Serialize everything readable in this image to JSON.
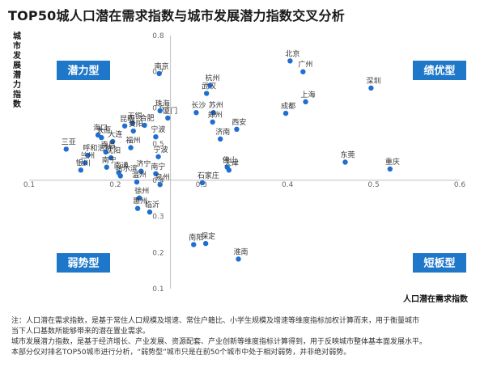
{
  "title": "TOP50城人口潜在需求指数与城市发展潜力指数交叉分析",
  "notes": [
    "注：人口潜在需求指数，是基于常住人口规模及增速、常住户籍比、小学生规模及增速等维度指标加权计算而来，用于衡量城市",
    "当下人口基数所能够带来的潜在置业需求。",
    "城市发展潜力指数，是基于经济增长、产业发展、资源配套、产业创新等维度指标计算得到，用于反映城市整体基本面发展水平。",
    "本部分仅对排名TOP50城市进行分析，“弱势型”城市只是在前50个城市中处于相对弱势，并非绝对弱势。"
  ],
  "chart_data": {
    "type": "scatter",
    "xlabel": "人口潜在需求指数",
    "ylabel": "城市发展潜力指数",
    "xlim": [
      0.1,
      0.6
    ],
    "ylim": [
      0.1,
      0.8
    ],
    "x_cross": 0.4,
    "xticks": [
      "0.1",
      "0.2",
      "0.3",
      "0.4",
      "0.5",
      "0.6"
    ],
    "yticks": [
      "0.1",
      "0.2",
      "0.3",
      "0.4",
      "0.5",
      "0.6",
      "0.7",
      "0.8"
    ],
    "quadrants": {
      "top_left": "潜力型",
      "top_right": "绩优型",
      "bottom_left": "弱势型",
      "bottom_right": "短板型"
    },
    "points": [
      {
        "label": "北京",
        "x": 0.403,
        "y": 0.73
      },
      {
        "label": "广州",
        "x": 0.418,
        "y": 0.7
      },
      {
        "label": "深圳",
        "x": 0.497,
        "y": 0.655
      },
      {
        "label": "南京",
        "x": 0.251,
        "y": 0.695
      },
      {
        "label": "杭州",
        "x": 0.31,
        "y": 0.662
      },
      {
        "label": "武汉",
        "x": 0.306,
        "y": 0.64
      },
      {
        "label": "上海",
        "x": 0.421,
        "y": 0.617
      },
      {
        "label": "成都",
        "x": 0.398,
        "y": 0.585
      },
      {
        "label": "长沙",
        "x": 0.294,
        "y": 0.587
      },
      {
        "label": "苏州",
        "x": 0.314,
        "y": 0.587
      },
      {
        "label": "郑州",
        "x": 0.313,
        "y": 0.561
      },
      {
        "label": "西安",
        "x": 0.341,
        "y": 0.541
      },
      {
        "label": "济南",
        "x": 0.322,
        "y": 0.514
      },
      {
        "label": "珠海",
        "x": 0.252,
        "y": 0.592
      },
      {
        "label": "厦门",
        "x": 0.261,
        "y": 0.572
      },
      {
        "label": "无锡",
        "x": 0.22,
        "y": 0.557
      },
      {
        "label": "合肥",
        "x": 0.234,
        "y": 0.552
      },
      {
        "label": "昆明",
        "x": 0.211,
        "y": 0.55
      },
      {
        "label": "宁波",
        "x": 0.247,
        "y": 0.52
      },
      {
        "label": "贵阳",
        "x": 0.221,
        "y": 0.536
      },
      {
        "label": "海口",
        "x": 0.18,
        "y": 0.525
      },
      {
        "label": "太原",
        "x": 0.184,
        "y": 0.518
      },
      {
        "label": "大连",
        "x": 0.197,
        "y": 0.507
      },
      {
        "label": "福州",
        "x": 0.218,
        "y": 0.49
      },
      {
        "label": "三亚",
        "x": 0.143,
        "y": 0.486
      },
      {
        "label": "南昌",
        "x": 0.189,
        "y": 0.478
      },
      {
        "label": "沈阳",
        "x": 0.195,
        "y": 0.462
      },
      {
        "label": "呼和浩特",
        "x": 0.168,
        "y": 0.469
      },
      {
        "label": "兰州",
        "x": 0.165,
        "y": 0.448
      },
      {
        "label": "银川",
        "x": 0.16,
        "y": 0.428
      },
      {
        "label": "南宁",
        "x": 0.19,
        "y": 0.436
      },
      {
        "label": "宁波",
        "x": 0.25,
        "y": 0.465
      },
      {
        "label": "南通",
        "x": 0.204,
        "y": 0.421
      },
      {
        "label": "哈尔滨",
        "x": 0.206,
        "y": 0.412
      },
      {
        "label": "济宁",
        "x": 0.23,
        "y": 0.425
      },
      {
        "label": "温州",
        "x": 0.225,
        "y": 0.395
      },
      {
        "label": "泉州",
        "x": 0.252,
        "y": 0.388
      },
      {
        "label": "南宁",
        "x": 0.247,
        "y": 0.418
      },
      {
        "label": "徐州",
        "x": 0.228,
        "y": 0.351
      },
      {
        "label": "惠州",
        "x": 0.226,
        "y": 0.322
      },
      {
        "label": "临沂",
        "x": 0.24,
        "y": 0.312
      },
      {
        "label": "东莞",
        "x": 0.467,
        "y": 0.45
      },
      {
        "label": "重庆",
        "x": 0.519,
        "y": 0.431
      },
      {
        "label": "佛山",
        "x": 0.33,
        "y": 0.436
      },
      {
        "label": "天津",
        "x": 0.332,
        "y": 0.428
      },
      {
        "label": "石家庄",
        "x": 0.301,
        "y": 0.393
      },
      {
        "label": "南阳",
        "x": 0.291,
        "y": 0.222
      },
      {
        "label": "保定",
        "x": 0.305,
        "y": 0.225
      },
      {
        "label": "淮南",
        "x": 0.343,
        "y": 0.182
      }
    ]
  }
}
